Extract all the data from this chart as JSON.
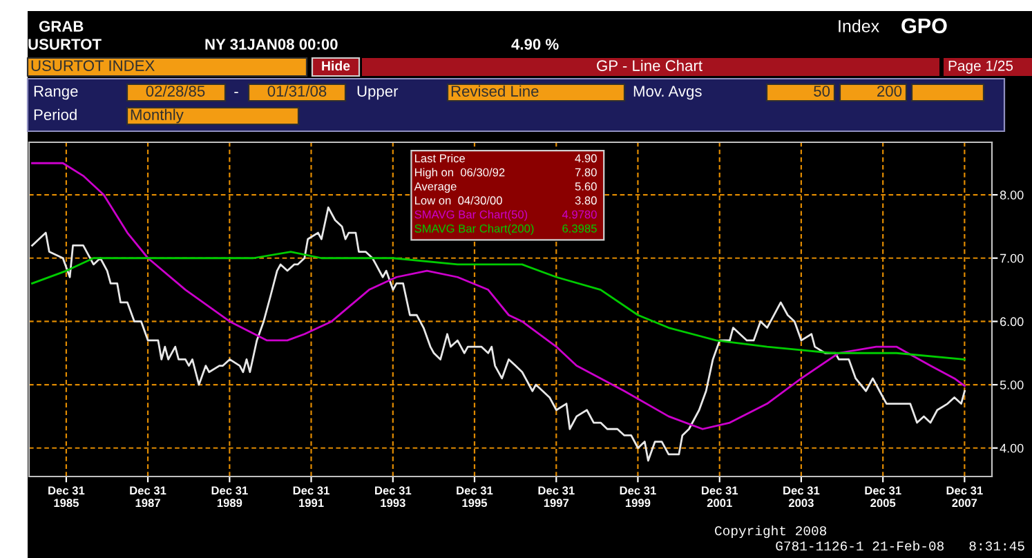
{
  "chart_data": {
    "type": "line",
    "title": "GP - Line Chart",
    "xlim": [
      "1985-02",
      "2008-09"
    ],
    "ylim": [
      3.55,
      8.83
    ],
    "xticks": [
      {
        "value": "1985-12-31",
        "label": "Dec 31\n1985"
      },
      {
        "value": "1987-12-31",
        "label": "Dec 31\n1987"
      },
      {
        "value": "1989-12-31",
        "label": "Dec 31\n1989"
      },
      {
        "value": "1991-12-31",
        "label": "Dec 31\n1991"
      },
      {
        "value": "1993-12-31",
        "label": "Dec 31\n1993"
      },
      {
        "value": "1995-12-31",
        "label": "Dec 31\n1995"
      },
      {
        "value": "1997-12-31",
        "label": "Dec 31\n1997"
      },
      {
        "value": "1999-12-31",
        "label": "Dec 31\n1999"
      },
      {
        "value": "2001-12-31",
        "label": "Dec 31\n2001"
      },
      {
        "value": "2003-12-31",
        "label": "Dec 31\n2003"
      },
      {
        "value": "2005-12-31",
        "label": "Dec 31\n2005"
      },
      {
        "value": "2007-12-31",
        "label": "Dec 31\n2007"
      }
    ],
    "yticks": [
      {
        "value": 4,
        "label": "4.00"
      },
      {
        "value": 5,
        "label": "5.00"
      },
      {
        "value": 6,
        "label": "6.00"
      },
      {
        "value": 7,
        "label": "7.00"
      },
      {
        "value": 8,
        "label": "8.00"
      }
    ],
    "grid": true,
    "legend": "top",
    "line_style": "solid",
    "annotations": [
      "GRAB",
      "USURTOT",
      "NY 31JAN08 00:00",
      "4.90 %",
      "Index",
      "GPO",
      "USURTOT INDEX",
      "Hide",
      "Page 1/25",
      "Range",
      "02/28/85",
      "-",
      "01/31/08",
      "Upper",
      "Revised Line",
      "Mov. Avgs",
      "50",
      "200",
      "Period",
      "Monthly",
      "High on  06/30/92",
      "Average",
      "Low on  04/30/00",
      "4.90",
      "7.80",
      "5.60",
      "3.80",
      "4.9780",
      "6.3985",
      "Copyright 2008",
      "G781-1126-1 21-Feb-08   8:31:45"
    ],
    "series": [
      {
        "name": "Last Price",
        "color": "#e8e8e8",
        "x": [
          "1985-03",
          "1985-05",
          "1985-07",
          "1985-08",
          "1985-12",
          "1986-02",
          "1986-03",
          "1986-06",
          "1986-09",
          "1986-11",
          "1987-01",
          "1987-02",
          "1987-04",
          "1987-05",
          "1987-07",
          "1987-09",
          "1987-11",
          "1988-01",
          "1988-04",
          "1988-05",
          "1988-06",
          "1988-07",
          "1988-09",
          "1988-10",
          "1988-12",
          "1989-01",
          "1989-02",
          "1989-04",
          "1989-06",
          "1989-07",
          "1989-10",
          "1989-11",
          "1990-01",
          "1990-04",
          "1990-05",
          "1990-06",
          "1990-07",
          "1990-09",
          "1990-11",
          "1991-01",
          "1991-03",
          "1991-04",
          "1991-06",
          "1991-08",
          "1991-09",
          "1991-11",
          "1991-12",
          "1992-03",
          "1992-04",
          "1992-06",
          "1992-08",
          "1992-10",
          "1992-11",
          "1992-12",
          "1993-02",
          "1993-03",
          "1993-05",
          "1993-07",
          "1993-08",
          "1993-10",
          "1993-11",
          "1994-01",
          "1994-02",
          "1994-04",
          "1994-06",
          "1994-08",
          "1994-10",
          "1994-12",
          "1995-01",
          "1995-03",
          "1995-05",
          "1995-06",
          "1995-08",
          "1995-10",
          "1995-11",
          "1996-01",
          "1996-03",
          "1996-05",
          "1996-06",
          "1996-07",
          "1996-09",
          "1996-11",
          "1997-01",
          "1997-03",
          "1997-06",
          "1997-07",
          "1997-09",
          "1997-11",
          "1998-01",
          "1998-04",
          "1998-05",
          "1998-07",
          "1998-10",
          "1998-12",
          "1999-02",
          "1999-04",
          "1999-07",
          "1999-09",
          "1999-11",
          "2000-01",
          "2000-03",
          "2000-04",
          "2000-06",
          "2000-08",
          "2000-10",
          "2001-01",
          "2001-02",
          "2001-04",
          "2001-07",
          "2001-09",
          "2001-11",
          "2002-01",
          "2002-04",
          "2002-05",
          "2002-07",
          "2002-09",
          "2002-11",
          "2003-01",
          "2003-03",
          "2003-04",
          "2003-07",
          "2003-09",
          "2003-11",
          "2004-01",
          "2004-04",
          "2004-05",
          "2004-08",
          "2004-11",
          "2004-12",
          "2005-03",
          "2005-05",
          "2005-08",
          "2005-10",
          "2005-12",
          "2006-02",
          "2006-04",
          "2006-07",
          "2006-09",
          "2006-11",
          "2007-01",
          "2007-03",
          "2007-05",
          "2007-08",
          "2007-10",
          "2007-12",
          "2008-01"
        ],
        "values": [
          7.2,
          7.3,
          7.4,
          7.1,
          7.0,
          6.7,
          7.2,
          7.2,
          6.9,
          7.0,
          6.8,
          6.6,
          6.6,
          6.3,
          6.3,
          6.0,
          6.0,
          5.7,
          5.7,
          5.4,
          5.6,
          5.4,
          5.6,
          5.4,
          5.4,
          5.3,
          5.4,
          5.0,
          5.3,
          5.2,
          5.3,
          5.3,
          5.4,
          5.3,
          5.2,
          5.4,
          5.2,
          5.7,
          6.0,
          6.4,
          6.8,
          6.9,
          6.8,
          6.9,
          6.9,
          7.0,
          7.3,
          7.4,
          7.3,
          7.8,
          7.6,
          7.5,
          7.3,
          7.4,
          7.4,
          7.1,
          7.1,
          7.0,
          6.9,
          6.7,
          6.8,
          6.5,
          6.6,
          6.6,
          6.1,
          6.1,
          5.9,
          5.6,
          5.5,
          5.4,
          5.8,
          5.6,
          5.7,
          5.5,
          5.6,
          5.6,
          5.6,
          5.5,
          5.6,
          5.3,
          5.1,
          5.4,
          5.3,
          5.2,
          4.9,
          5.0,
          4.9,
          4.8,
          4.6,
          4.7,
          4.3,
          4.5,
          4.6,
          4.4,
          4.4,
          4.3,
          4.3,
          4.2,
          4.2,
          4.0,
          4.1,
          3.8,
          4.1,
          4.1,
          3.9,
          3.9,
          4.2,
          4.3,
          4.6,
          4.9,
          5.4,
          5.7,
          5.7,
          5.9,
          5.8,
          5.7,
          5.7,
          6.0,
          5.9,
          6.0,
          6.3,
          6.1,
          6.0,
          5.7,
          5.8,
          5.6,
          5.5,
          5.5,
          5.4,
          5.4,
          5.1,
          4.9,
          5.1,
          4.9,
          4.7,
          4.7,
          4.7,
          4.7,
          4.4,
          4.5,
          4.4,
          4.6,
          4.7,
          4.8,
          4.7,
          4.9
        ]
      },
      {
        "name": "SMAVG Bar Chart(50)",
        "color": "#cc00cc",
        "x": [
          "1985-03",
          "1985-12",
          "1986-06",
          "1986-12",
          "1987-07",
          "1988-01",
          "1988-12",
          "1990-01",
          "1990-12",
          "1991-06",
          "1991-11",
          "1992-07",
          "1993-06",
          "1994-02",
          "1994-11",
          "1995-08",
          "1996-05",
          "1996-11",
          "1997-03",
          "1998-01",
          "1998-07",
          "1999-09",
          "2000-10",
          "2001-08",
          "2002-04",
          "2003-03",
          "2004-01",
          "2004-12",
          "2005-11",
          "2006-05",
          "2007-03",
          "2007-10",
          "2008-01"
        ],
        "values": [
          8.5,
          8.5,
          8.3,
          8.0,
          7.4,
          7.0,
          6.5,
          6.0,
          5.7,
          5.7,
          5.8,
          6.0,
          6.5,
          6.7,
          6.8,
          6.7,
          6.5,
          6.1,
          6.0,
          5.6,
          5.3,
          4.9,
          4.5,
          4.3,
          4.4,
          4.7,
          5.1,
          5.5,
          5.6,
          5.6,
          5.3,
          5.1,
          4.98
        ]
      },
      {
        "name": "SMAVG Bar Chart(200)",
        "color": "#00cc00",
        "x": [
          "1985-03",
          "1986-01",
          "1986-09",
          "1987-04",
          "1988-12",
          "1990-08",
          "1991-07",
          "1992-04",
          "1994-01",
          "1995-08",
          "1997-03",
          "1998-01",
          "1999-02",
          "2000-01",
          "2000-10",
          "2001-12",
          "2003-03",
          "2004-10",
          "2006-05",
          "2008-01"
        ],
        "values": [
          6.6,
          6.8,
          7.0,
          7.0,
          7.0,
          7.0,
          7.1,
          7.0,
          7.0,
          6.9,
          6.9,
          6.7,
          6.5,
          6.1,
          5.9,
          5.7,
          5.6,
          5.5,
          5.5,
          5.4
        ]
      }
    ]
  }
}
